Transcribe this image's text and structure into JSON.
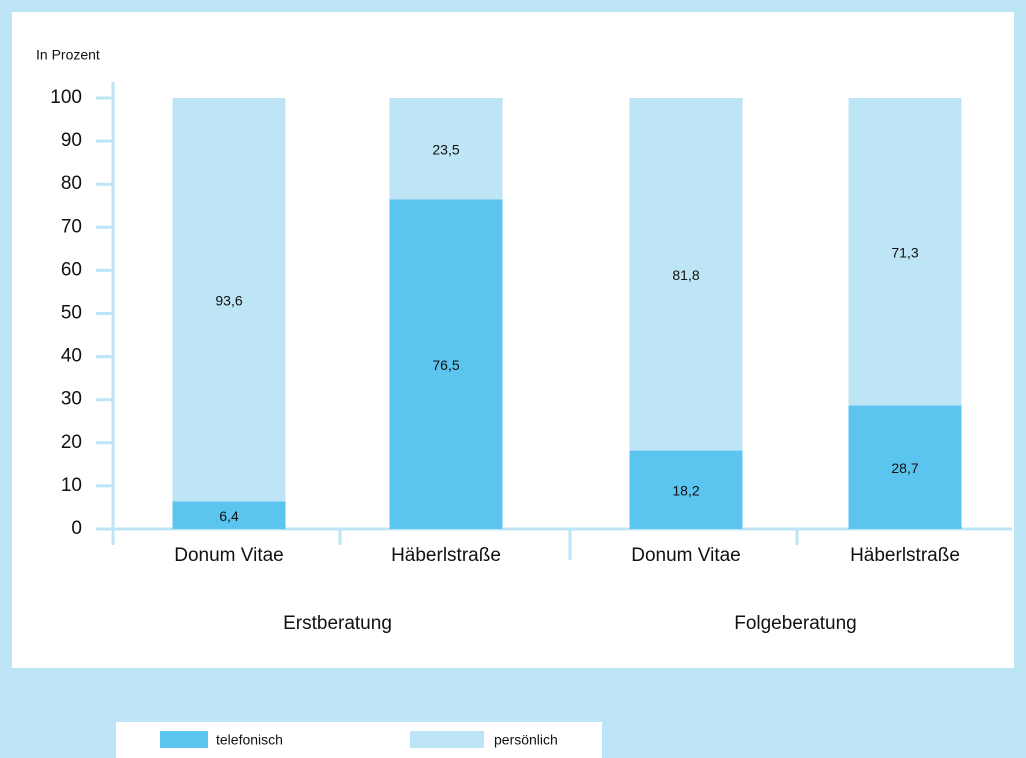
{
  "chart_data": {
    "type": "stacked-bar",
    "ylabel": "In Prozent",
    "categories": [
      "Donum Vitae",
      "Häberlstraße",
      "Donum Vitae",
      "Häberlstraße"
    ],
    "groups": [
      "Erstberatung",
      "Folgeberatung"
    ],
    "series": [
      {
        "name": "telefonisch",
        "color": "#5cc5ef",
        "values": [
          6.4,
          76.5,
          18.2,
          28.7
        ],
        "value_labels": [
          "6,4",
          "76,5",
          "18,2",
          "28,7"
        ]
      },
      {
        "name": "persönlich",
        "color": "#bde5f6",
        "values": [
          93.6,
          23.5,
          81.8,
          71.3
        ],
        "value_labels": [
          "93,6",
          "23,5",
          "81,8",
          "71,3"
        ]
      }
    ],
    "ylim": [
      0,
      100
    ],
    "yticks": [
      0,
      10,
      20,
      30,
      40,
      50,
      60,
      70,
      80,
      90,
      100
    ]
  }
}
